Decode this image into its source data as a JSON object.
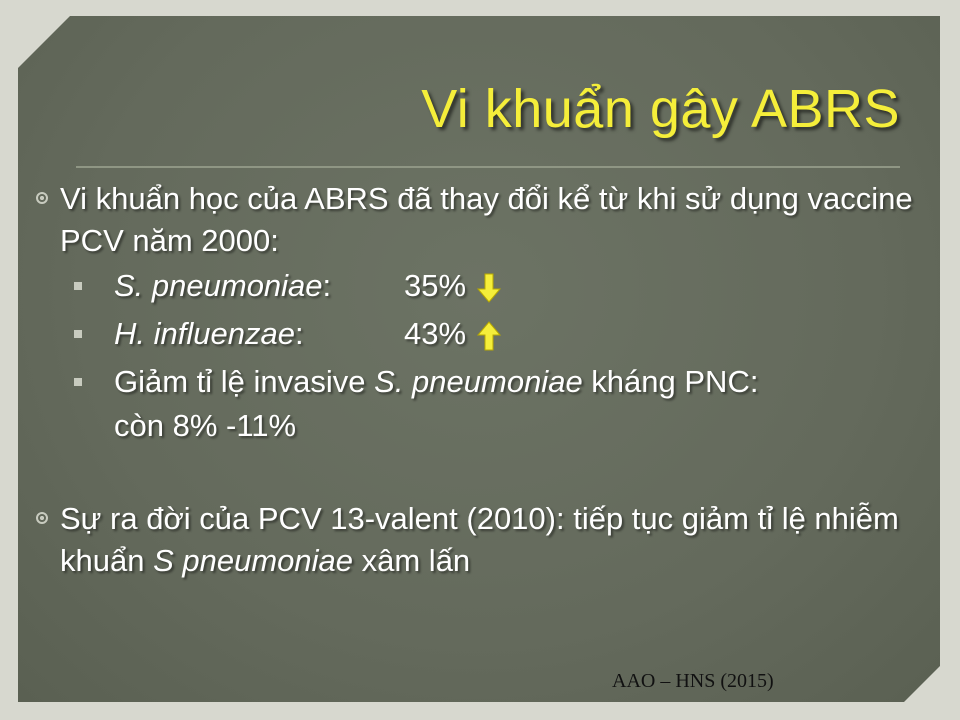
{
  "slide": {
    "title": "Vi khuẩn gây ABRS",
    "bullets": [
      {
        "text": "Vi khuẩn học của ABRS đã thay đổi kể từ khi sử dụng vaccine PCV năm 2000:"
      },
      {
        "text_before": "Sự ra đời của PCV 13-valent (2010): tiếp tục giảm tỉ lệ nhiễm khuẩn ",
        "text_italic": "S pneumoniae",
        "text_after": " xâm lấn"
      }
    ],
    "sub_items": [
      {
        "organism": "S. pneumoniae",
        "colon": ":",
        "value": "35%",
        "trend_icon": "arrow-down-icon"
      },
      {
        "organism": "H. influenzae",
        "colon": ":",
        "value": "43%",
        "trend_icon": "arrow-up-icon"
      },
      {
        "text_before": "Giảm tỉ lệ invasive ",
        "text_italic": "S. pneumoniae",
        "text_after": " kháng PNC:",
        "line2": "còn 8% -11%"
      }
    ],
    "citation": "AAO – HNS (2015)"
  },
  "colors": {
    "title": "#f5ee3a",
    "arrow": "#f5ee3a",
    "background": "#646a5c",
    "text": "#ffffff"
  }
}
